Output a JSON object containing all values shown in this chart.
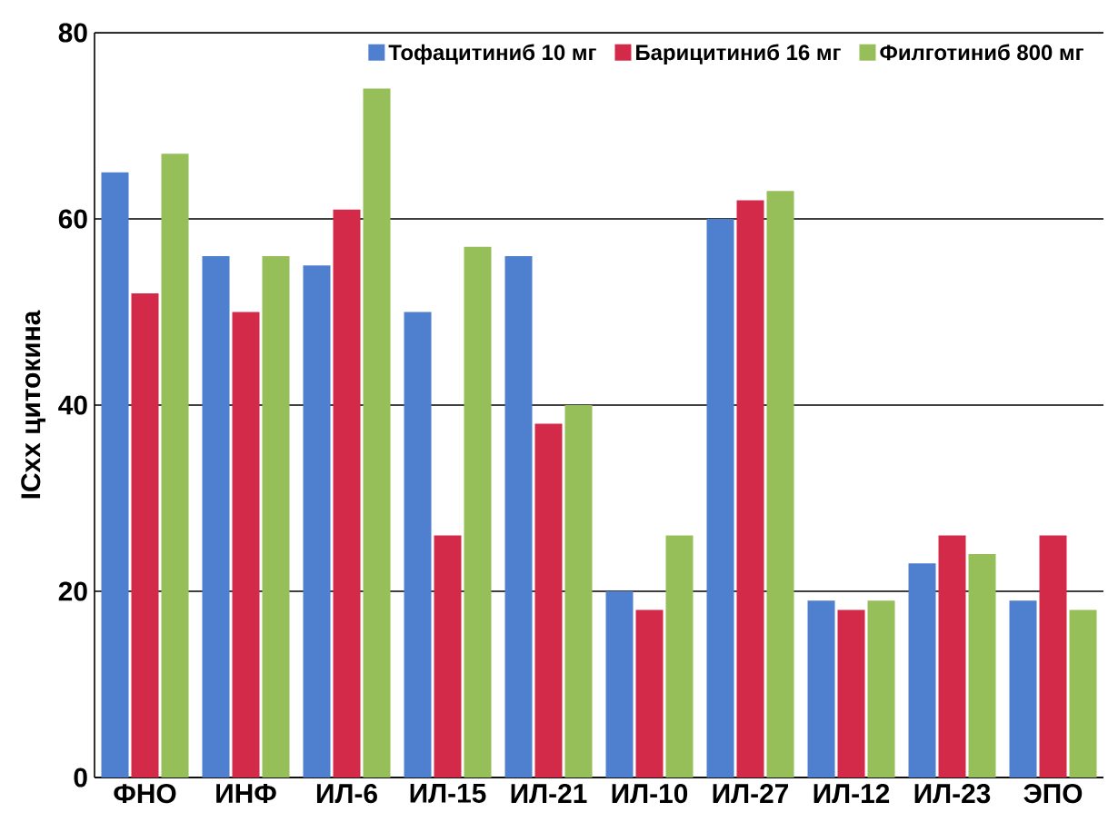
{
  "chart_data": {
    "type": "bar",
    "ylabel": "ICxx цитокина",
    "categories": [
      "ФНО",
      "ИНФ",
      "ИЛ-6",
      "ИЛ-15",
      "ИЛ-21",
      "ИЛ-10",
      "ИЛ-27",
      "ИЛ-12",
      "ИЛ-23",
      "ЭПО"
    ],
    "series": [
      {
        "name": "Тофацитиниб 10 мг",
        "color": "#4f7fcf",
        "values": [
          65,
          56,
          55,
          50,
          56,
          20,
          60,
          19,
          23,
          19
        ]
      },
      {
        "name": "Барицитиниб 16 мг",
        "color": "#d42a4a",
        "values": [
          52,
          50,
          61,
          26,
          38,
          18,
          62,
          18,
          26,
          26
        ]
      },
      {
        "name": "Филготиниб 800 мг",
        "color": "#96bf5a",
        "values": [
          67,
          56,
          74,
          57,
          40,
          26,
          63,
          19,
          24,
          18
        ]
      }
    ],
    "ylim": [
      0,
      80
    ],
    "yticks": [
      0,
      20,
      40,
      60,
      80
    ],
    "grid": "y",
    "legend": "top right"
  }
}
